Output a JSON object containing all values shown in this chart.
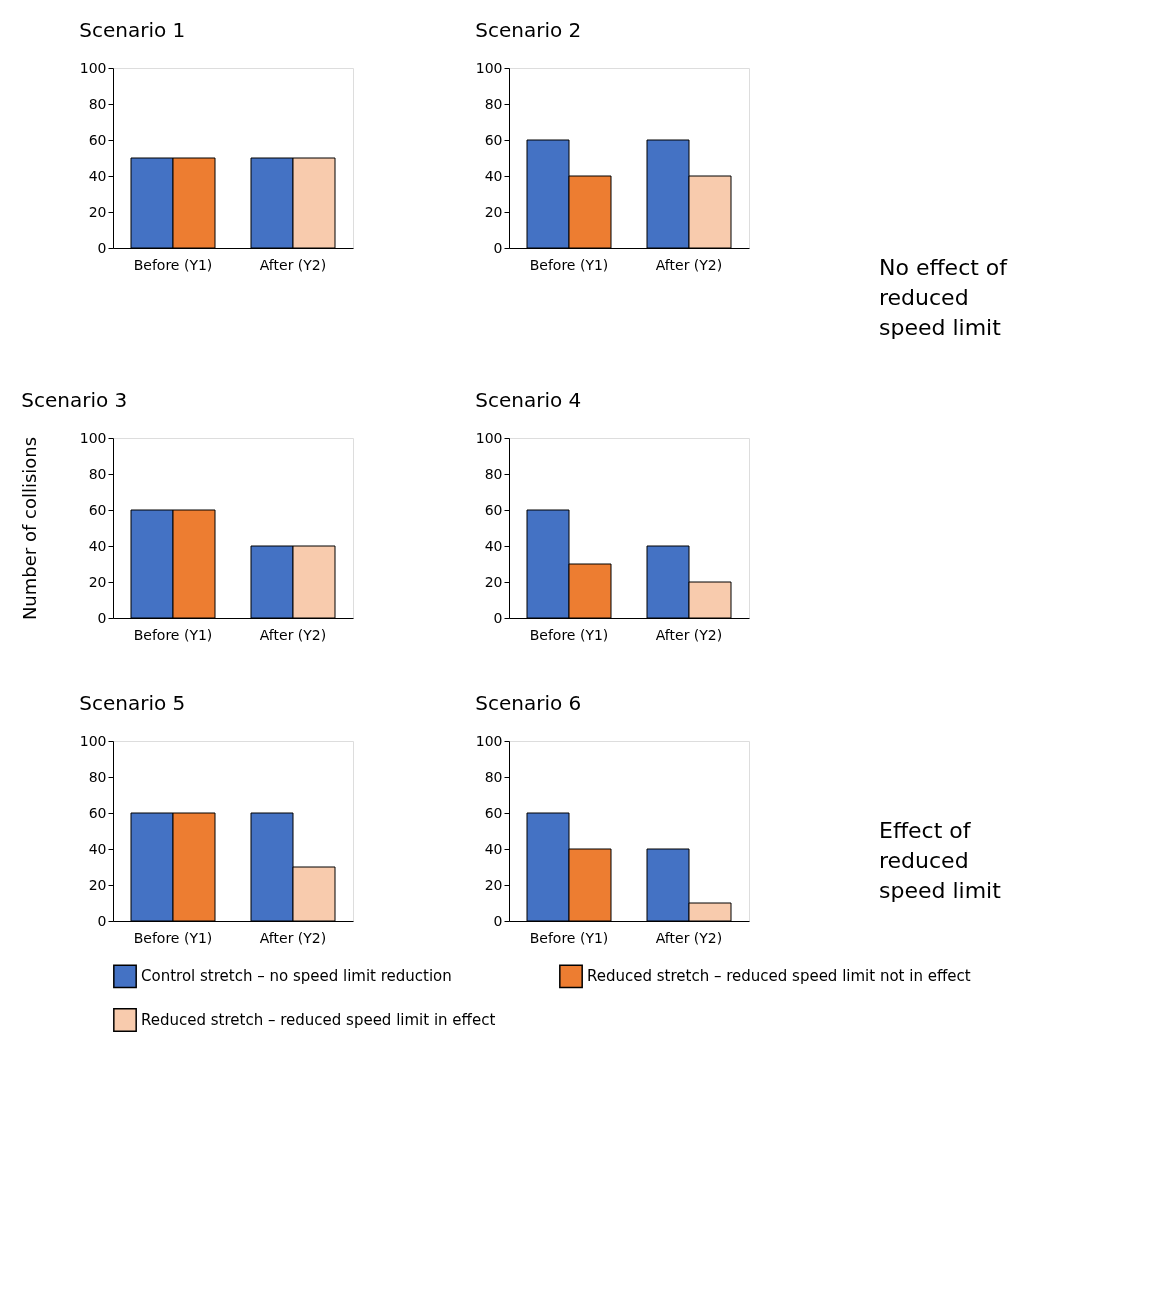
{
  "chart_data": [
    {
      "type": "bar",
      "title": "Scenario 1",
      "categories": [
        "Before (Y1)",
        "After (Y2)"
      ],
      "ylim": [
        0,
        100
      ],
      "yticks": [
        0,
        20,
        40,
        60,
        80,
        100
      ],
      "grid": false,
      "legend": "bottom",
      "series": [
        {
          "name": "Control stretch – no speed limit reduction",
          "color": "#4472c4",
          "values": [
            50,
            50
          ]
        },
        {
          "name": "Reduced stretch – reduced speed limit not in effect",
          "color": "#ed7d31",
          "values": [
            50,
            null
          ]
        },
        {
          "name": "Reduced stretch – reduced speed limit in effect",
          "color": "#f8cbad",
          "values": [
            null,
            50
          ]
        }
      ]
    },
    {
      "type": "bar",
      "title": "Scenario 2",
      "categories": [
        "Before (Y1)",
        "After (Y2)"
      ],
      "ylim": [
        0,
        100
      ],
      "yticks": [
        0,
        20,
        40,
        60,
        80,
        100
      ],
      "grid": false,
      "legend": "bottom",
      "annotations": [
        "No effect of reduced speed limit"
      ],
      "series": [
        {
          "name": "Control stretch – no speed limit reduction",
          "color": "#4472c4",
          "values": [
            60,
            60
          ]
        },
        {
          "name": "Reduced stretch – reduced speed limit not in effect",
          "color": "#ed7d31",
          "values": [
            40,
            null
          ]
        },
        {
          "name": "Reduced stretch – reduced speed limit in effect",
          "color": "#f8cbad",
          "values": [
            null,
            40
          ]
        }
      ]
    },
    {
      "type": "bar",
      "title": "Scenario 3",
      "ylabel": "Number of collisions",
      "categories": [
        "Before (Y1)",
        "After (Y2)"
      ],
      "ylim": [
        0,
        100
      ],
      "yticks": [
        0,
        20,
        40,
        60,
        80,
        100
      ],
      "grid": false,
      "legend": "bottom",
      "series": [
        {
          "name": "Control stretch – no speed limit reduction",
          "color": "#4472c4",
          "values": [
            60,
            40
          ]
        },
        {
          "name": "Reduced stretch – reduced speed limit not in effect",
          "color": "#ed7d31",
          "values": [
            60,
            null
          ]
        },
        {
          "name": "Reduced stretch – reduced speed limit in effect",
          "color": "#f8cbad",
          "values": [
            null,
            40
          ]
        }
      ]
    },
    {
      "type": "bar",
      "title": "Scenario 4",
      "categories": [
        "Before (Y1)",
        "After (Y2)"
      ],
      "ylim": [
        0,
        100
      ],
      "yticks": [
        0,
        20,
        40,
        60,
        80,
        100
      ],
      "grid": false,
      "legend": "bottom",
      "series": [
        {
          "name": "Control stretch – no speed limit reduction",
          "color": "#4472c4",
          "values": [
            60,
            40
          ]
        },
        {
          "name": "Reduced stretch – reduced speed limit not in effect",
          "color": "#ed7d31",
          "values": [
            30,
            null
          ]
        },
        {
          "name": "Reduced stretch – reduced speed limit in effect",
          "color": "#f8cbad",
          "values": [
            null,
            20
          ]
        }
      ]
    },
    {
      "type": "bar",
      "title": "Scenario 5",
      "categories": [
        "Before (Y1)",
        "After (Y2)"
      ],
      "ylim": [
        0,
        100
      ],
      "yticks": [
        0,
        20,
        40,
        60,
        80,
        100
      ],
      "grid": false,
      "legend": "bottom",
      "series": [
        {
          "name": "Control stretch – no speed limit reduction",
          "color": "#4472c4",
          "values": [
            60,
            60
          ]
        },
        {
          "name": "Reduced stretch – reduced speed limit not in effect",
          "color": "#ed7d31",
          "values": [
            60,
            null
          ]
        },
        {
          "name": "Reduced stretch – reduced speed limit in effect",
          "color": "#f8cbad",
          "values": [
            null,
            30
          ]
        }
      ]
    },
    {
      "type": "bar",
      "title": "Scenario 6",
      "categories": [
        "Before (Y1)",
        "After (Y2)"
      ],
      "ylim": [
        0,
        100
      ],
      "yticks": [
        0,
        20,
        40,
        60,
        80,
        100
      ],
      "grid": false,
      "legend": "bottom",
      "annotations": [
        "Effect of reduced speed limit"
      ],
      "series": [
        {
          "name": "Control stretch – no speed limit reduction",
          "color": "#4472c4",
          "values": [
            60,
            40
          ]
        },
        {
          "name": "Reduced stretch – reduced speed limit not in effect",
          "color": "#ed7d31",
          "values": [
            40,
            null
          ]
        },
        {
          "name": "Reduced stretch – reduced speed limit in effect",
          "color": "#f8cbad",
          "values": [
            null,
            10
          ]
        }
      ]
    }
  ]
}
